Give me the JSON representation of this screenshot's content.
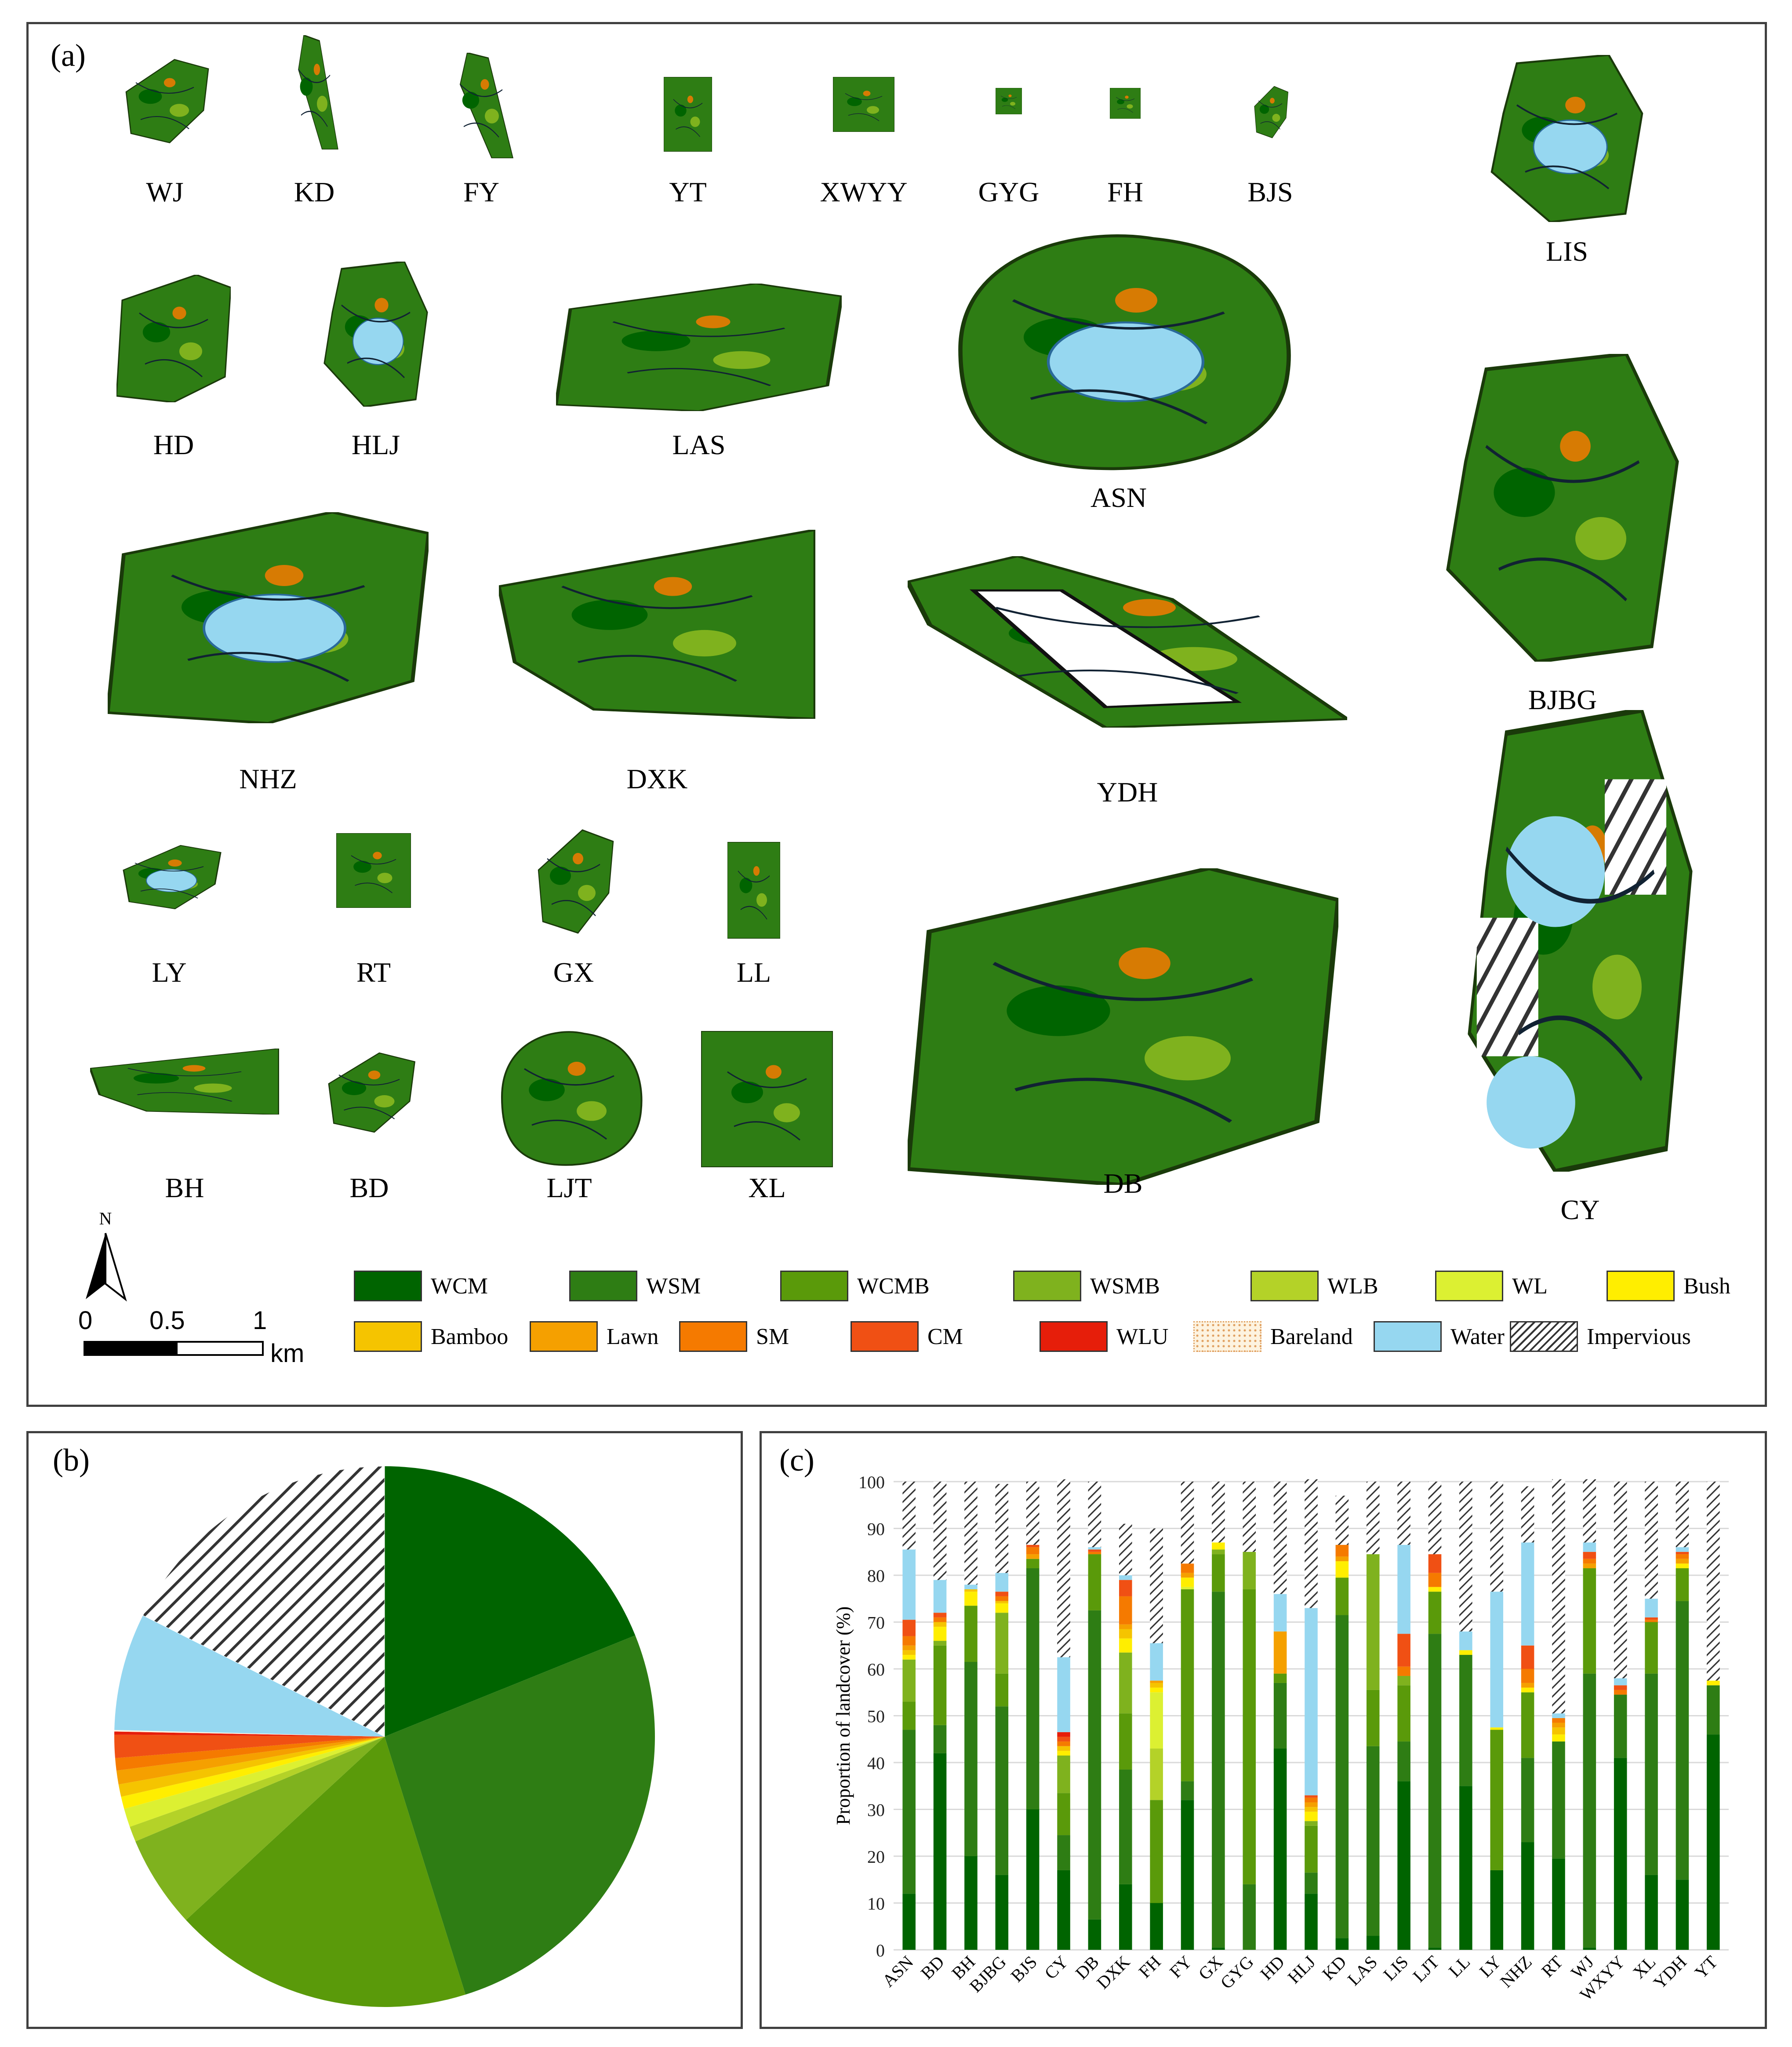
{
  "panel_a": {
    "label": "(a)",
    "parks": [
      {
        "code": "WJ",
        "kind": "green"
      },
      {
        "code": "KD",
        "kind": "green"
      },
      {
        "code": "FY",
        "kind": "green"
      },
      {
        "code": "YT",
        "kind": "green"
      },
      {
        "code": "XWYY",
        "kind": "green"
      },
      {
        "code": "GYG",
        "kind": "green"
      },
      {
        "code": "FH",
        "kind": "green"
      },
      {
        "code": "BJS",
        "kind": "green"
      },
      {
        "code": "LIS",
        "kind": "water"
      },
      {
        "code": "HD",
        "kind": "green"
      },
      {
        "code": "HLJ",
        "kind": "water"
      },
      {
        "code": "LAS",
        "kind": "green"
      },
      {
        "code": "ASN",
        "kind": "water"
      },
      {
        "code": "BJBG",
        "kind": "green"
      },
      {
        "code": "NHZ",
        "kind": "water"
      },
      {
        "code": "DXK",
        "kind": "green"
      },
      {
        "code": "YDH",
        "kind": "hollow"
      },
      {
        "code": "CY",
        "kind": "impervious"
      },
      {
        "code": "LY",
        "kind": "water"
      },
      {
        "code": "RT",
        "kind": "green"
      },
      {
        "code": "GX",
        "kind": "green"
      },
      {
        "code": "LL",
        "kind": "green"
      },
      {
        "code": "DB",
        "kind": "green"
      },
      {
        "code": "BH",
        "kind": "green"
      },
      {
        "code": "BD",
        "kind": "green"
      },
      {
        "code": "LJT",
        "kind": "green"
      },
      {
        "code": "XL",
        "kind": "green"
      }
    ],
    "north_label": "N",
    "scale_labels": [
      "0",
      "0.5",
      "1"
    ],
    "scale_unit": "km",
    "legend": [
      {
        "name": "WCM",
        "color": "#006400"
      },
      {
        "name": "WSM",
        "color": "#2e7d14"
      },
      {
        "name": "WCMB",
        "color": "#5a9a0a"
      },
      {
        "name": "WSMB",
        "color": "#7fb21e"
      },
      {
        "name": "WLB",
        "color": "#b4d228"
      },
      {
        "name": "WL",
        "color": "#dcf032"
      },
      {
        "name": "Bush",
        "color": "#ffee00"
      },
      {
        "name": "Bamboo",
        "color": "#f5c400"
      },
      {
        "name": "Lawn",
        "color": "#f5a000"
      },
      {
        "name": "SM",
        "color": "#f57a00"
      },
      {
        "name": "CM",
        "color": "#f05014"
      },
      {
        "name": "WLU",
        "color": "#e61e0a"
      },
      {
        "name": "Bareland",
        "color": "#fdf3e0"
      },
      {
        "name": "Water",
        "color": "#96d7f0"
      },
      {
        "name": "Impervious",
        "color": "hatch"
      }
    ]
  },
  "panel_b": {
    "label": "(b)"
  },
  "panel_c": {
    "label": "(c)"
  },
  "chart_data": [
    {
      "type": "pie",
      "title": "",
      "categories": [
        "WCM",
        "WSM",
        "WCMB",
        "WSMB",
        "WLB",
        "WL",
        "Bush",
        "Bamboo",
        "Lawn",
        "SM",
        "CM",
        "WLU",
        "Bareland",
        "Water",
        "Impervious"
      ],
      "values": [
        20.5,
        28.5,
        19.5,
        6.0,
        1.0,
        1.2,
        0.8,
        0.8,
        0.9,
        0.8,
        1.5,
        0.2,
        0.1,
        7.6,
        19.1
      ]
    },
    {
      "type": "bar",
      "stacked": true,
      "title": "",
      "xlabel": "",
      "ylabel": "Proportion of landcover (%)",
      "ylim": [
        0,
        100
      ],
      "yticks": [
        0,
        10,
        20,
        30,
        40,
        50,
        60,
        70,
        80,
        90,
        100
      ],
      "grid": true,
      "categories": [
        "ASN",
        "BD",
        "BH",
        "BJBG",
        "BJS",
        "CY",
        "DB",
        "DXK",
        "FH",
        "FY",
        "GX",
        "GYG",
        "HD",
        "HLJ",
        "KD",
        "LAS",
        "LIS",
        "LJT",
        "LL",
        "LY",
        "NHZ",
        "RT",
        "WJ",
        "WXYY",
        "XL",
        "YDH",
        "YT"
      ],
      "series": [
        {
          "name": "WCM",
          "values": [
            12,
            42,
            20,
            16,
            30,
            17,
            6.5,
            14,
            10,
            32,
            0.5,
            0,
            43,
            12,
            2.5,
            3,
            36,
            0.5,
            35,
            17,
            23,
            19.5,
            0.5,
            41,
            16,
            15,
            46
          ]
        },
        {
          "name": "WSM",
          "values": [
            35,
            6,
            41.5,
            36,
            51.5,
            7.5,
            66,
            24.5,
            0,
            4,
            76,
            14,
            14,
            4.5,
            69,
            40.5,
            8.5,
            67,
            28,
            0,
            18,
            25,
            58.5,
            13.5,
            43,
            59.5,
            10.5
          ]
        },
        {
          "name": "WCMB",
          "values": [
            6,
            17,
            12,
            7,
            2,
            9,
            12,
            12,
            22,
            41,
            8,
            63,
            2,
            10,
            8,
            12,
            12,
            9,
            0,
            30,
            14,
            0,
            22.5,
            0,
            11,
            7,
            0
          ]
        },
        {
          "name": "WSMB",
          "values": [
            9,
            1,
            0,
            13,
            0,
            8,
            0,
            13,
            0,
            0,
            1,
            8,
            0,
            1,
            0,
            29,
            2,
            0,
            0,
            0,
            0,
            0,
            0,
            0,
            0,
            0,
            0
          ]
        },
        {
          "name": "WLB",
          "values": [
            0,
            0,
            0,
            0,
            0,
            0,
            0,
            0,
            11,
            0,
            0,
            0,
            0,
            0,
            0,
            0,
            0,
            0,
            0,
            0,
            0,
            0,
            0,
            0,
            0,
            0,
            0
          ]
        },
        {
          "name": "WL",
          "values": [
            0,
            0,
            0,
            0,
            0,
            0,
            0,
            0,
            12,
            0.5,
            0,
            0,
            0,
            0,
            0,
            0,
            0,
            0,
            0,
            0,
            0,
            0,
            0,
            0,
            0,
            0,
            0
          ]
        },
        {
          "name": "Bush",
          "values": [
            1,
            3,
            3,
            2,
            0,
            1,
            0,
            3,
            1,
            2,
            1.5,
            0,
            0,
            2,
            3.5,
            0,
            0,
            1,
            1,
            0.5,
            1,
            1.5,
            0,
            0,
            0,
            1,
            1
          ]
        },
        {
          "name": "Bamboo",
          "values": [
            1,
            1,
            0.5,
            0.5,
            0,
            1,
            0,
            2,
            1,
            0,
            0,
            0,
            0,
            1,
            0,
            0,
            0,
            0,
            0,
            0,
            0,
            1.5,
            0,
            0,
            0,
            0,
            0
          ]
        },
        {
          "name": "Lawn",
          "values": [
            1,
            0,
            0,
            0,
            1,
            0,
            0,
            1,
            0.5,
            1,
            0,
            0,
            9,
            1,
            1,
            0,
            0,
            0,
            0,
            0,
            1,
            1,
            1,
            0,
            0,
            1,
            0
          ]
        },
        {
          "name": "SM",
          "values": [
            2,
            1,
            0,
            1,
            1.5,
            1,
            0.5,
            6,
            0,
            2,
            0,
            0,
            0,
            1,
            2.5,
            0,
            2,
            3,
            0,
            0,
            3,
            1,
            1,
            1,
            0.5,
            1,
            0
          ]
        },
        {
          "name": "CM",
          "values": [
            3.5,
            1,
            0,
            1,
            0.5,
            1,
            0.5,
            3.5,
            0,
            0,
            0,
            0,
            0,
            0.5,
            0,
            0,
            7,
            4,
            0,
            0,
            5,
            0,
            1.5,
            1,
            0.5,
            0.5,
            0
          ]
        },
        {
          "name": "WLU",
          "values": [
            0,
            0,
            0,
            0,
            0,
            1,
            0,
            0,
            0,
            0,
            0,
            0,
            0,
            0,
            0,
            0,
            0,
            0,
            0,
            0,
            0,
            0,
            0,
            0,
            0,
            0,
            0
          ]
        },
        {
          "name": "Bareland",
          "values": [
            0,
            0,
            0,
            0,
            0,
            0,
            0,
            0,
            0,
            0,
            0,
            0,
            0,
            0,
            0,
            0,
            0,
            0,
            0,
            0,
            0,
            0,
            0,
            0,
            0,
            0,
            0
          ]
        },
        {
          "name": "Water",
          "values": [
            15,
            7,
            1,
            4,
            0,
            16,
            0.5,
            1,
            8,
            0,
            0,
            0,
            8,
            40,
            0,
            0,
            19,
            0,
            4,
            29,
            22,
            1,
            2,
            1.5,
            4,
            1,
            0
          ]
        },
        {
          "name": "Impervious",
          "values": [
            14.5,
            21,
            22,
            19,
            13.5,
            38,
            14,
            11,
            24.5,
            17.5,
            13,
            15,
            24,
            27.5,
            10.5,
            15.5,
            13.5,
            15.5,
            32,
            23.5,
            12,
            50,
            13.5,
            42,
            25,
            14,
            42.5
          ]
        }
      ]
    }
  ]
}
